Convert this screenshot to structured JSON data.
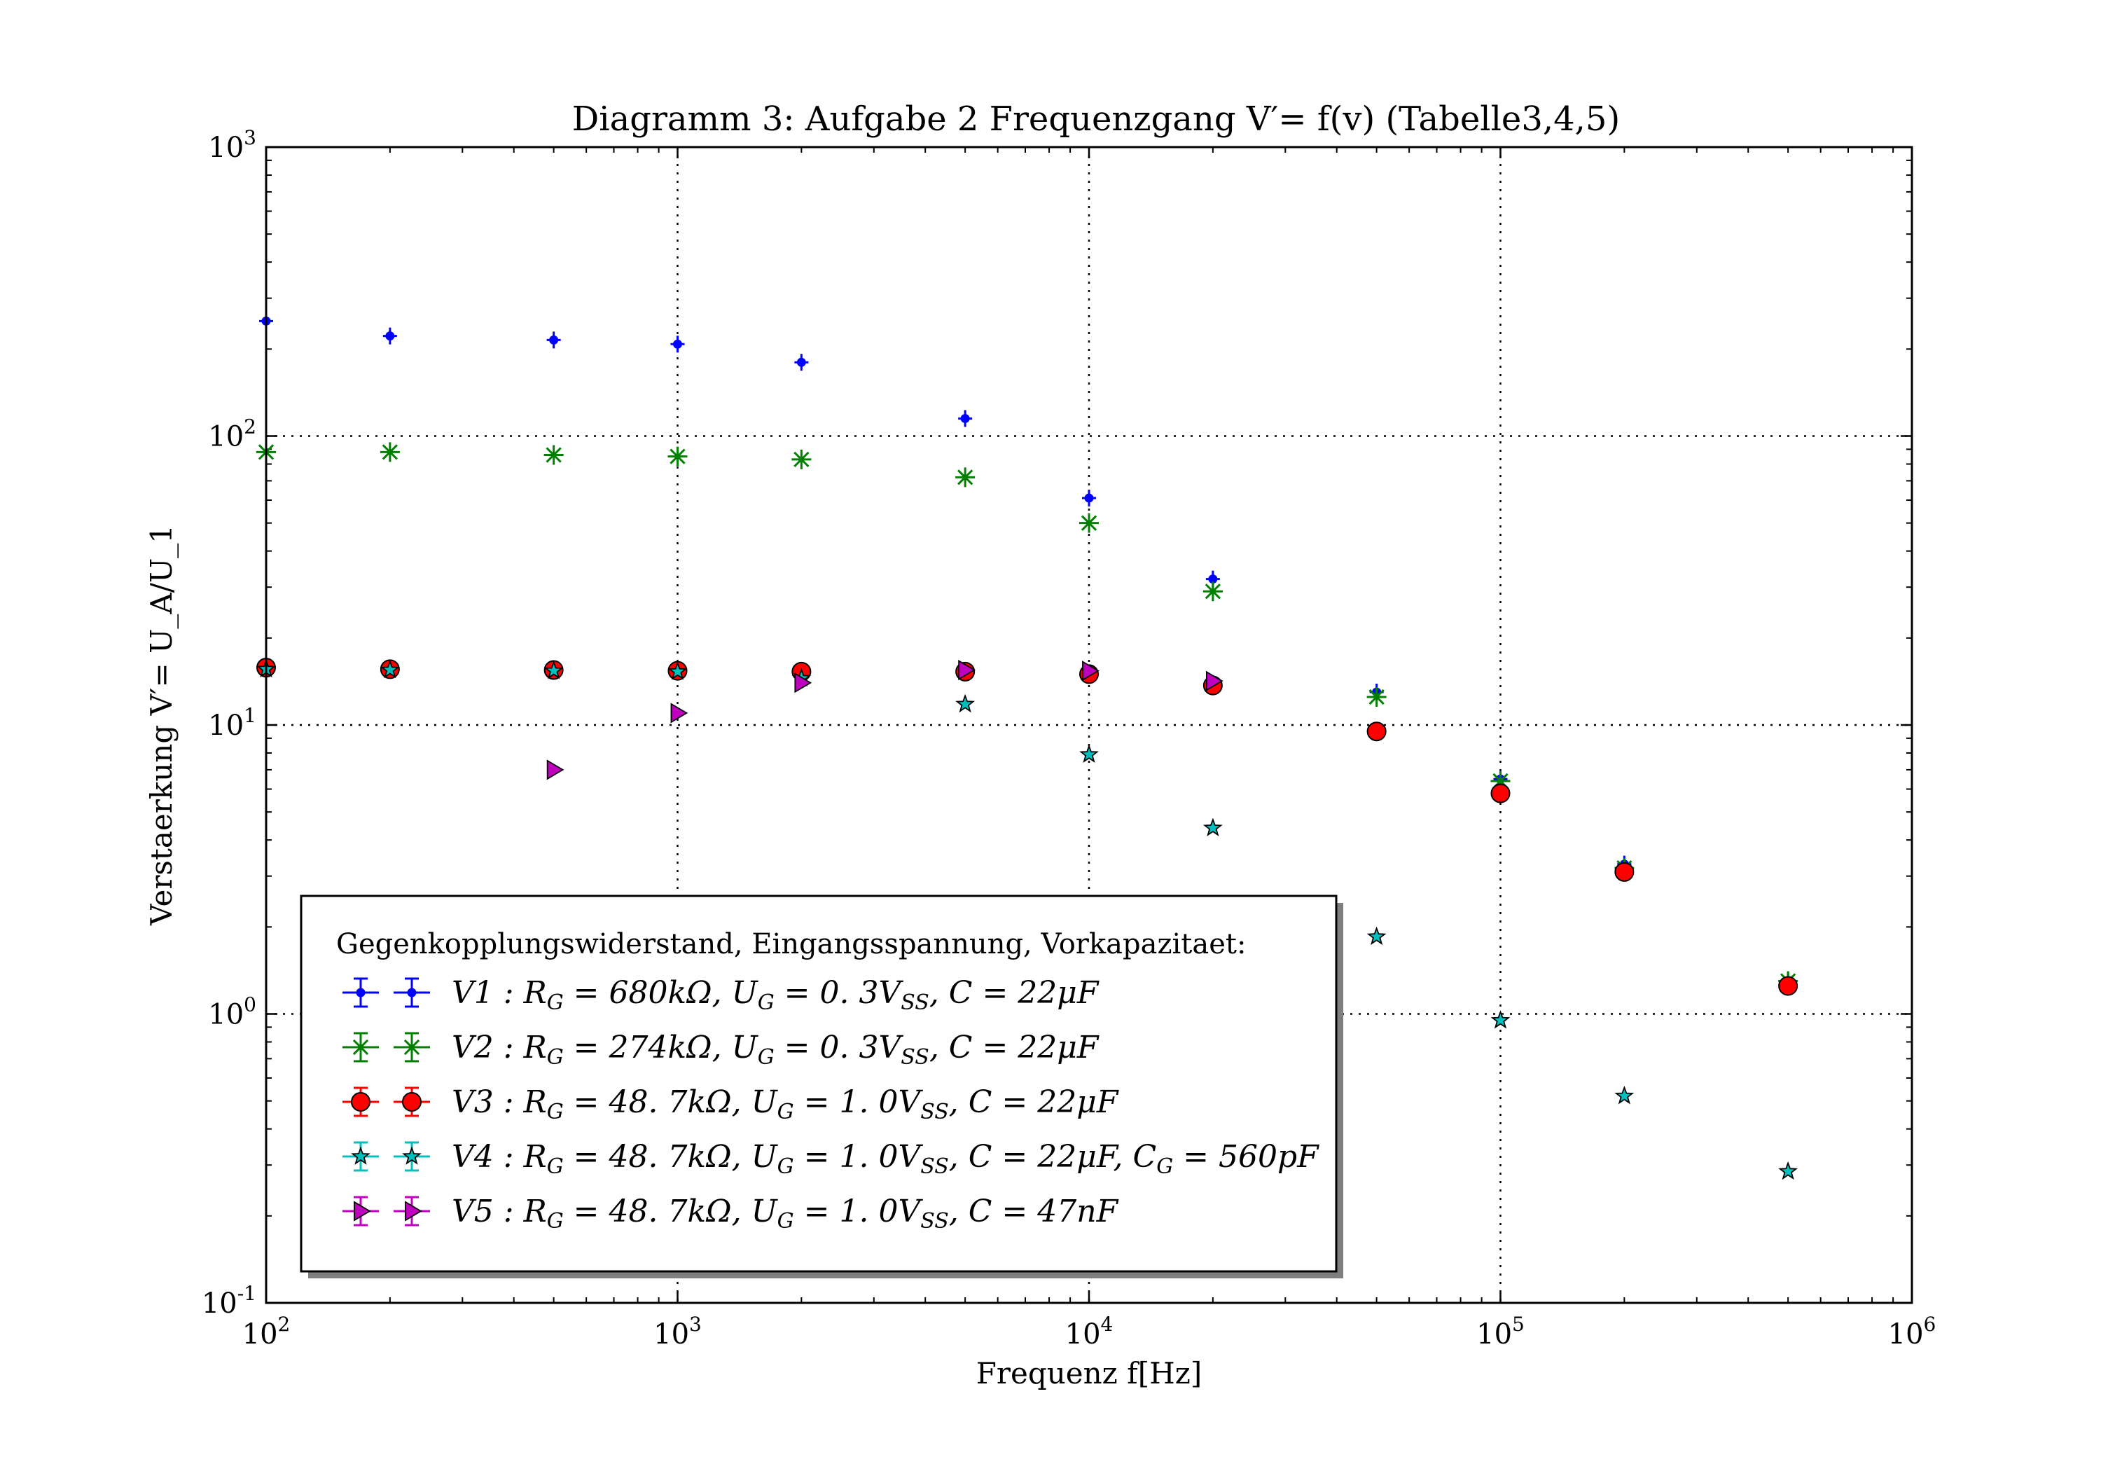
{
  "chart_data": {
    "type": "scatter",
    "title": "Diagramm 3: Aufgabe 2 Frequenzgang V′= f(v) (Tabelle3,4,5)",
    "xlabel": "Frequenz f[Hz]",
    "ylabel": "Verstaerkung V′= U_A/U_1",
    "xscale": "log",
    "yscale": "log",
    "xlim": [
      100,
      1000000
    ],
    "ylim": [
      0.1,
      1000
    ],
    "grid": true,
    "legend_position": "lower-left",
    "x_tick_labels": [
      {
        "value": 100,
        "base": "10",
        "exp": "2"
      },
      {
        "value": 1000,
        "base": "10",
        "exp": "3"
      },
      {
        "value": 10000,
        "base": "10",
        "exp": "4"
      },
      {
        "value": 100000,
        "base": "10",
        "exp": "5"
      },
      {
        "value": 1000000,
        "base": "10",
        "exp": "6"
      }
    ],
    "y_tick_labels": [
      {
        "value": 0.1,
        "base": "10",
        "exp": "-1"
      },
      {
        "value": 1,
        "base": "10",
        "exp": "0"
      },
      {
        "value": 10,
        "base": "10",
        "exp": "1"
      },
      {
        "value": 100,
        "base": "10",
        "exp": "2"
      },
      {
        "value": 1000,
        "base": "10",
        "exp": "3"
      }
    ],
    "legend_title": "Gegenkopplungswiderstand, Eingangsspannung, Vorkapazitaet:",
    "series": [
      {
        "name": "V1 : R_G = 680kΩ, U_G = 0. 3V_SS, C = 22μF",
        "marker": "point",
        "color": "#0000ff",
        "x": [
          100,
          200,
          500,
          1000,
          2000,
          5000,
          10000,
          20000,
          50000,
          100000,
          200000,
          500000
        ],
        "y": [
          250,
          222,
          215,
          208,
          180,
          115,
          61,
          32,
          13,
          6.5,
          3.3,
          1.3
        ]
      },
      {
        "name": "V2 : R_G = 274kΩ, U_G = 0. 3V_SS, C = 22μF",
        "marker": "star-x",
        "color": "#008000",
        "x": [
          100,
          200,
          500,
          1000,
          2000,
          5000,
          10000,
          20000,
          50000,
          100000,
          200000,
          500000
        ],
        "y": [
          88,
          88,
          86,
          85,
          83,
          72,
          50,
          29,
          12.5,
          6.4,
          3.2,
          1.3
        ]
      },
      {
        "name": "V3 : R_G = 48. 7kΩ, U_G = 1. 0V_SS, C = 22μF",
        "marker": "circle",
        "color": "#ff0000",
        "x": [
          100,
          200,
          500,
          1000,
          2000,
          5000,
          10000,
          20000,
          50000,
          100000,
          200000,
          500000
        ],
        "y": [
          15.8,
          15.6,
          15.5,
          15.4,
          15.3,
          15.3,
          15.0,
          13.7,
          9.5,
          5.8,
          3.1,
          1.25
        ]
      },
      {
        "name": "V4 : R_G = 48. 7kΩ, U_G = 1. 0V_SS, C = 22μF, C_G = 560pF",
        "marker": "star",
        "color": "#00bfbf",
        "x": [
          100,
          200,
          500,
          1000,
          2000,
          5000,
          10000,
          20000,
          50000,
          100000,
          200000,
          500000
        ],
        "y": [
          15.6,
          15.5,
          15.4,
          15.3,
          14.5,
          11.8,
          7.9,
          4.4,
          1.85,
          0.95,
          0.52,
          0.285
        ]
      },
      {
        "name": "V5 : R_G = 48. 7kΩ, U_G = 1. 0V_SS, C = 47nF",
        "marker": "triangle-right",
        "color": "#bf00bf",
        "x": [
          500,
          1000,
          2000,
          5000,
          10000,
          20000
        ],
        "y": [
          7.0,
          11.0,
          14.0,
          15.5,
          15.4,
          14.2
        ]
      }
    ]
  }
}
